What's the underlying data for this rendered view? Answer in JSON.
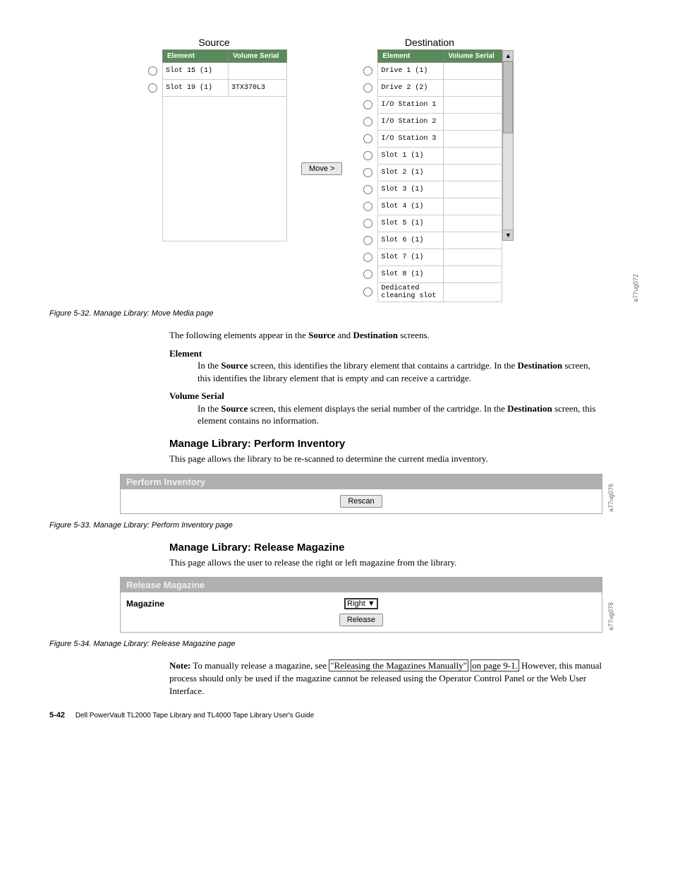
{
  "move_media": {
    "source_title": "Source",
    "dest_title": "Destination",
    "col_element": "Element",
    "col_volume": "Volume Serial",
    "move_button": "Move >",
    "ref": "a77ug072",
    "source_rows": [
      {
        "element": "Slot 15 (1)",
        "volume": ""
      },
      {
        "element": "Slot 19 (1)",
        "volume": "3TX370L3"
      }
    ],
    "dest_rows": [
      {
        "element": "Drive 1 (1)"
      },
      {
        "element": "Drive 2 (2)"
      },
      {
        "element": "I/O Station 1"
      },
      {
        "element": "I/O Station 2"
      },
      {
        "element": "I/O Station 3"
      },
      {
        "element": "Slot 1 (1)"
      },
      {
        "element": "Slot 2 (1)"
      },
      {
        "element": "Slot 3 (1)"
      },
      {
        "element": "Slot 4 (1)"
      },
      {
        "element": "Slot 5 (1)"
      },
      {
        "element": "Slot 6 (1)"
      },
      {
        "element": "Slot 7 (1)"
      },
      {
        "element": "Slot 8 (1)"
      },
      {
        "element": "Dedicated cleaning slot"
      }
    ]
  },
  "fig32_caption": "Figure 5-32. Manage Library: Move Media page",
  "intro_text_1": "The following elements appear in the ",
  "intro_source": "Source",
  "intro_and": " and ",
  "intro_dest": "Destination",
  "intro_text_2": " screens.",
  "element_term": "Element",
  "element_def_1": "In the ",
  "element_def_2": " screen, this identifies the library element that contains a cartridge. In the ",
  "element_def_3": " screen, this identifies the library element that is empty and can receive a cartridge.",
  "volume_term": "Volume Serial",
  "volume_def_1": "In the ",
  "volume_def_2": " screen, this element displays the serial number of the cartridge. In the ",
  "volume_def_3": " screen, this element contains no information.",
  "heading_inventory": "Manage Library: Perform Inventory",
  "inventory_text": "This page allows the library to be re-scanned to determine the current media inventory.",
  "inventory_panel_title": "Perform Inventory",
  "rescan_button": "Rescan",
  "inventory_ref": "a77ug076",
  "fig33_caption": "Figure 5-33. Manage Library: Perform Inventory page",
  "heading_release": "Manage Library: Release Magazine",
  "release_text": "This page allows the user to release the right or left magazine from the library.",
  "release_panel_title": "Release Magazine",
  "magazine_label": "Magazine",
  "magazine_value": "Right",
  "release_button": "Release",
  "release_ref": "a77ug078",
  "fig34_caption": "Figure 5-34. Manage Library: Release Magazine page",
  "note_label": "Note:",
  "note_text_1": " To manually release a magazine, see ",
  "note_link_1": "\"Releasing the Magazines Manually\"",
  "note_link_2": "on page 9-1.",
  "note_text_2": " However, this manual process should only be used if the magazine cannot be released using the Operator Control Panel or the Web User Interface.",
  "footer_page": "5-42",
  "footer_text": "Dell PowerVault TL2000 Tape Library and TL4000 Tape Library User's Guide"
}
